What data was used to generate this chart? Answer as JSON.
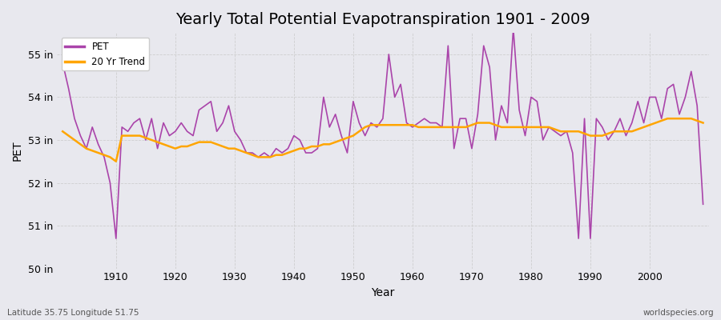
{
  "title": "Yearly Total Potential Evapotranspiration 1901 - 2009",
  "ylabel": "PET",
  "xlabel": "Year",
  "subtitle_left": "Latitude 35.75 Longitude 51.75",
  "subtitle_right": "worldspecies.org",
  "years": [
    1901,
    1902,
    1903,
    1904,
    1905,
    1906,
    1907,
    1908,
    1909,
    1910,
    1911,
    1912,
    1913,
    1914,
    1915,
    1916,
    1917,
    1918,
    1919,
    1920,
    1921,
    1922,
    1923,
    1924,
    1925,
    1926,
    1927,
    1928,
    1929,
    1930,
    1931,
    1932,
    1933,
    1934,
    1935,
    1936,
    1937,
    1938,
    1939,
    1940,
    1941,
    1942,
    1943,
    1944,
    1945,
    1946,
    1947,
    1948,
    1949,
    1950,
    1951,
    1952,
    1953,
    1954,
    1955,
    1956,
    1957,
    1958,
    1959,
    1960,
    1961,
    1962,
    1963,
    1964,
    1965,
    1966,
    1967,
    1968,
    1969,
    1970,
    1971,
    1972,
    1973,
    1974,
    1975,
    1976,
    1977,
    1978,
    1979,
    1980,
    1981,
    1982,
    1983,
    1984,
    1985,
    1986,
    1987,
    1988,
    1989,
    1990,
    1991,
    1992,
    1993,
    1994,
    1995,
    1996,
    1997,
    1998,
    1999,
    2000,
    2001,
    2002,
    2003,
    2004,
    2005,
    2006,
    2007,
    2008,
    2009
  ],
  "pet": [
    54.8,
    54.2,
    53.5,
    53.1,
    52.8,
    53.3,
    52.9,
    52.6,
    52.0,
    50.7,
    53.3,
    53.2,
    53.4,
    53.5,
    53.0,
    53.5,
    52.8,
    53.4,
    53.1,
    53.2,
    53.4,
    53.2,
    53.1,
    53.7,
    53.8,
    53.9,
    53.2,
    53.4,
    53.8,
    53.2,
    53.0,
    52.7,
    52.7,
    52.6,
    52.7,
    52.6,
    52.8,
    52.7,
    52.8,
    53.1,
    53.0,
    52.7,
    52.7,
    52.8,
    54.0,
    53.3,
    53.6,
    53.1,
    52.7,
    53.9,
    53.4,
    53.1,
    53.4,
    53.3,
    53.5,
    55.0,
    54.0,
    54.3,
    53.4,
    53.3,
    53.4,
    53.5,
    53.4,
    53.4,
    53.3,
    55.2,
    52.8,
    53.5,
    53.5,
    52.8,
    53.6,
    55.2,
    54.7,
    53.0,
    53.8,
    53.4,
    55.6,
    53.7,
    53.1,
    54.0,
    53.9,
    53.0,
    53.3,
    53.2,
    53.1,
    53.2,
    52.7,
    50.7,
    53.5,
    50.7,
    53.5,
    53.3,
    53.0,
    53.2,
    53.5,
    53.1,
    53.4,
    53.9,
    53.4,
    54.0,
    54.0,
    53.5,
    54.2,
    54.3,
    53.6,
    54.0,
    54.6,
    53.8,
    51.5
  ],
  "trend": [
    53.2,
    53.1,
    53.0,
    52.9,
    52.8,
    52.75,
    52.7,
    52.65,
    52.6,
    52.5,
    53.1,
    53.1,
    53.1,
    53.1,
    53.05,
    53.0,
    52.95,
    52.9,
    52.85,
    52.8,
    52.85,
    52.85,
    52.9,
    52.95,
    52.95,
    52.95,
    52.9,
    52.85,
    52.8,
    52.8,
    52.75,
    52.7,
    52.65,
    52.6,
    52.6,
    52.6,
    52.65,
    52.65,
    52.7,
    52.75,
    52.8,
    52.8,
    52.85,
    52.85,
    52.9,
    52.9,
    52.95,
    53.0,
    53.05,
    53.1,
    53.2,
    53.3,
    53.35,
    53.35,
    53.35,
    53.35,
    53.35,
    53.35,
    53.35,
    53.35,
    53.3,
    53.3,
    53.3,
    53.3,
    53.3,
    53.3,
    53.3,
    53.3,
    53.3,
    53.35,
    53.4,
    53.4,
    53.4,
    53.35,
    53.3,
    53.3,
    53.3,
    53.3,
    53.3,
    53.3,
    53.3,
    53.3,
    53.3,
    53.25,
    53.2,
    53.2,
    53.2,
    53.2,
    53.15,
    53.1,
    53.1,
    53.1,
    53.15,
    53.2,
    53.2,
    53.2,
    53.2,
    53.25,
    53.3,
    53.35,
    53.4,
    53.45,
    53.5,
    53.5,
    53.5,
    53.5,
    53.5,
    53.45,
    53.4
  ],
  "pet_color": "#aa44aa",
  "trend_color": "#ffa500",
  "background_color": "#e8e8ee",
  "plot_bg_color": "#e8e8ee",
  "ylim": [
    50.0,
    55.5
  ],
  "yticks": [
    50,
    51,
    52,
    53,
    54,
    55
  ],
  "ytick_labels": [
    "50 in",
    "51 in",
    "52 in",
    "53 in",
    "54 in",
    "55 in"
  ],
  "xlim": [
    1900,
    2010
  ],
  "xticks": [
    1910,
    1920,
    1930,
    1940,
    1950,
    1960,
    1970,
    1980,
    1990,
    2000
  ],
  "grid_color": "#cccccc",
  "title_fontsize": 14,
  "label_fontsize": 10,
  "tick_fontsize": 9
}
